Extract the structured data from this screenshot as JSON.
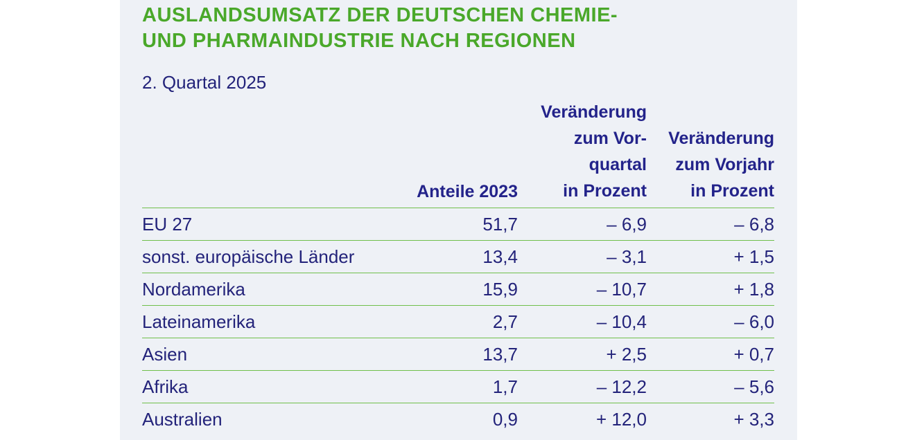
{
  "title": "AUSLANDSUMSATZ DER DEUTSCHEN CHEMIE-\nUND PHARMAINDUSTRIE NACH REGIONEN",
  "subtitle": "2. Quartal 2025",
  "columns": {
    "share": "Anteile 2023",
    "change_quarter": "Veränderung\nzum Vor-\nquartal\nin Prozent",
    "change_year": "Veränderung\nzum Vorjahr\nin Prozent"
  },
  "colors": {
    "title": "#4aa82a",
    "text": "#23237a",
    "rule": "#6fbf4a",
    "panel": "#eef1f6"
  },
  "rows": [
    {
      "region": "EU 27",
      "share": "51,7",
      "change_quarter": "– 6,9",
      "change_year": "– 6,8"
    },
    {
      "region": "sonst. europäische Länder",
      "share": "13,4",
      "change_quarter": "– 3,1",
      "change_year": "+ 1,5"
    },
    {
      "region": "Nordamerika",
      "share": "15,9",
      "change_quarter": "– 10,7",
      "change_year": "+ 1,8"
    },
    {
      "region": "Lateinamerika",
      "share": "2,7",
      "change_quarter": "– 10,4",
      "change_year": "– 6,0"
    },
    {
      "region": "Asien",
      "share": "13,7",
      "change_quarter": "+ 2,5",
      "change_year": "+ 0,7"
    },
    {
      "region": "Afrika",
      "share": "1,7",
      "change_quarter": "– 12,2",
      "change_year": "– 5,6"
    },
    {
      "region": "Australien",
      "share": "0,9",
      "change_quarter": "+ 12,0",
      "change_year": "+ 3,3"
    }
  ]
}
